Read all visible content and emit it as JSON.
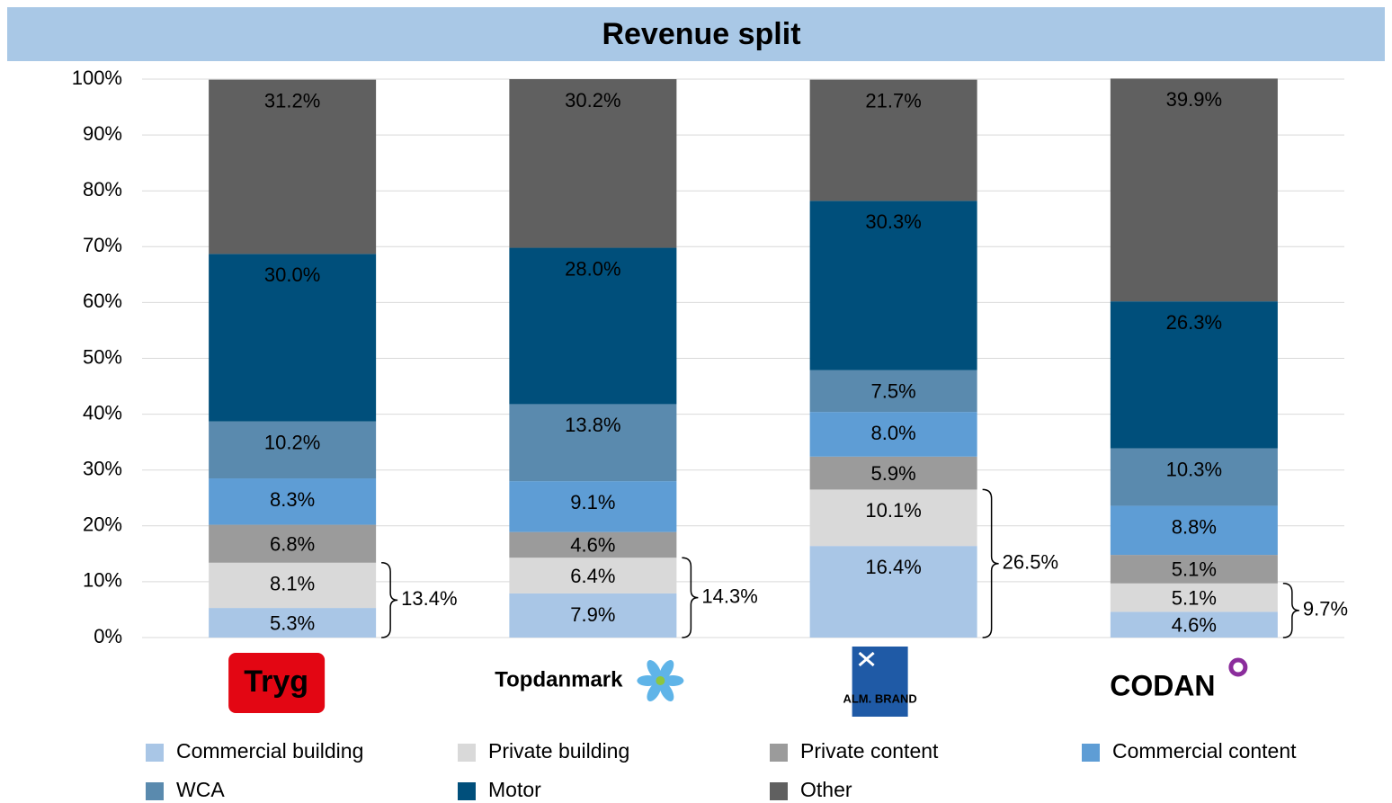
{
  "chart_data": {
    "type": "stacked_bar",
    "title": "Revenue split",
    "categories": [
      "Tryg",
      "Topdanmark",
      "ALM. BRAND",
      "CODAN"
    ],
    "series": [
      {
        "name": "Commercial building",
        "color": "#a9c6e6",
        "values": [
          5.3,
          7.9,
          16.4,
          4.6
        ],
        "value_labels": [
          "5.3%",
          "7.9%",
          "16.4%",
          "4.6%"
        ]
      },
      {
        "name": "Private building",
        "color": "#d9d9d9",
        "values": [
          8.1,
          6.4,
          10.1,
          5.1
        ],
        "value_labels": [
          "8.1%",
          "6.4%",
          "10.1%",
          "5.1%"
        ]
      },
      {
        "name": "Private content",
        "color": "#9b9b9b",
        "values": [
          6.8,
          4.6,
          5.9,
          5.1
        ],
        "value_labels": [
          "6.8%",
          "4.6%",
          "5.9%",
          "5.1%"
        ]
      },
      {
        "name": "Commercial content",
        "color": "#5e9dd5",
        "values": [
          8.3,
          9.1,
          8.0,
          8.8
        ],
        "value_labels": [
          "8.3%",
          "9.1%",
          "8.0%",
          "8.8%"
        ]
      },
      {
        "name": "WCA",
        "color": "#5a8aae",
        "values": [
          10.2,
          13.8,
          7.5,
          10.3
        ],
        "value_labels": [
          "10.2%",
          "13.8%",
          "7.5%",
          "10.3%"
        ]
      },
      {
        "name": "Motor",
        "color": "#004f7b",
        "values": [
          30.0,
          28.0,
          30.3,
          26.3
        ],
        "value_labels": [
          "30.0%",
          "28.0%",
          "30.3%",
          "26.3%"
        ]
      },
      {
        "name": "Other",
        "color": "#606060",
        "values": [
          31.2,
          30.2,
          21.7,
          39.9
        ],
        "value_labels": [
          "31.2%",
          "30.2%",
          "21.7%",
          "39.9%"
        ]
      }
    ],
    "brackets": [
      {
        "value": 13.4,
        "label": "13.4%"
      },
      {
        "value": 14.3,
        "label": "14.3%"
      },
      {
        "value": 26.5,
        "label": "26.5%"
      },
      {
        "value": 9.7,
        "label": "9.7%"
      }
    ],
    "ylim": [
      0,
      100
    ],
    "yticks": [
      {
        "value": 0,
        "label": "0%"
      },
      {
        "value": 10,
        "label": "10%"
      },
      {
        "value": 20,
        "label": "20%"
      },
      {
        "value": 30,
        "label": "30%"
      },
      {
        "value": 40,
        "label": "40%"
      },
      {
        "value": 50,
        "label": "50%"
      },
      {
        "value": 60,
        "label": "60%"
      },
      {
        "value": 70,
        "label": "70%"
      },
      {
        "value": 80,
        "label": "80%"
      },
      {
        "value": 90,
        "label": "90%"
      },
      {
        "value": 100,
        "label": "100%"
      }
    ],
    "grid": true
  }
}
